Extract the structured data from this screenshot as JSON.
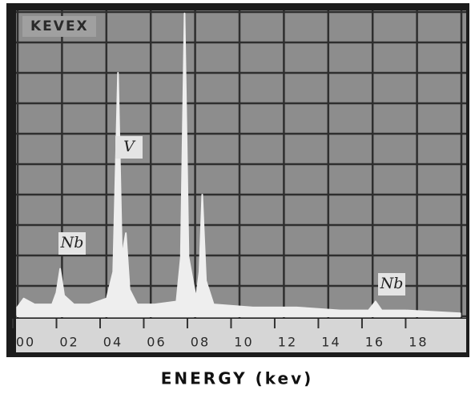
{
  "chart_data": {
    "type": "area",
    "title": "KEVEX",
    "x_label": "ENERGY (kev)",
    "x": [
      0.2,
      0.5,
      1.0,
      1.8,
      2.0,
      2.17,
      2.35,
      2.8,
      3.5,
      4.3,
      4.6,
      4.82,
      5.0,
      5.18,
      5.35,
      5.7,
      6.5,
      7.5,
      7.7,
      7.87,
      8.05,
      8.4,
      8.55,
      8.68,
      8.85,
      9.2,
      11,
      13,
      15,
      16.3,
      16.62,
      16.9,
      18,
      20.5
    ],
    "series": [
      {
        "color": "#eeeeee",
        "values": [
          0.3,
          0.6,
          0.4,
          0.4,
          0.8,
          1.6,
          0.7,
          0.4,
          0.4,
          0.6,
          1.5,
          8.2,
          2.0,
          2.8,
          0.9,
          0.4,
          0.4,
          0.5,
          2.0,
          10.2,
          2.0,
          0.6,
          1.5,
          4.1,
          1.2,
          0.4,
          0.3,
          0.3,
          0.2,
          0.2,
          0.5,
          0.2,
          0.2,
          0.1
        ]
      }
    ],
    "xlim": [
      0,
      20.7
    ],
    "ylim": [
      0,
      10.3
    ],
    "xticks": [
      {
        "value": 0,
        "label": "00"
      },
      {
        "value": 2,
        "label": "02"
      },
      {
        "value": 4,
        "label": "04"
      },
      {
        "value": 6,
        "label": "06"
      },
      {
        "value": 8,
        "label": "08"
      },
      10,
      12,
      14,
      16,
      18
    ],
    "annotations": [
      "Nb",
      "V",
      "Nb"
    ],
    "grid": true
  }
}
